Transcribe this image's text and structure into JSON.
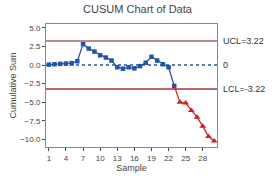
{
  "chart_data": {
    "type": "line",
    "title": "CUSUM Chart of Data",
    "xlabel": "Sample",
    "ylabel": "Cumulative Sum",
    "x": [
      1,
      2,
      3,
      4,
      5,
      6,
      7,
      8,
      9,
      10,
      11,
      12,
      13,
      14,
      15,
      16,
      17,
      18,
      19,
      20,
      21,
      22,
      23,
      24,
      25,
      26,
      27,
      28,
      29,
      30
    ],
    "series": [
      {
        "color": "#2255aa",
        "marker": "square",
        "line_style": "solid",
        "values": [
          0.05,
          0.1,
          0.15,
          0.2,
          0.25,
          0.5,
          2.8,
          2.2,
          1.8,
          1.3,
          1.0,
          0.6,
          -0.3,
          -0.5,
          -0.3,
          -0.45,
          -0.15,
          0.3,
          1.1,
          0.6,
          0.1,
          -0.3,
          -2.8,
          null,
          null,
          null,
          null,
          null,
          null,
          null
        ]
      },
      {
        "color": "#cc2222",
        "marker": "triangle",
        "line_style": "solid",
        "values": [
          null,
          null,
          null,
          null,
          null,
          null,
          null,
          null,
          null,
          null,
          null,
          null,
          null,
          null,
          null,
          null,
          null,
          null,
          null,
          null,
          null,
          null,
          null,
          -5.0,
          -5.1,
          -6.1,
          -7.0,
          -8.2,
          -9.6,
          -10.2
        ]
      }
    ],
    "lines": [
      {
        "value": 3.22,
        "label": "UCL=3.22",
        "color": "#b06060",
        "line_style": "solid"
      },
      {
        "value": 0,
        "label": "0",
        "color": "#2255aa",
        "line_style": "dotted"
      },
      {
        "value": -3.22,
        "label": "LCL=-3.22",
        "color": "#aa3333",
        "line_style": "solid"
      }
    ],
    "xlim": [
      0.5,
      30.5
    ],
    "ylim": [
      -11.0,
      5.5
    ],
    "xticks": [
      1,
      4,
      7,
      10,
      13,
      16,
      19,
      22,
      25,
      28
    ],
    "yticks": [
      {
        "value": 5.0,
        "label": "5.0"
      },
      2.5,
      {
        "value": 0.0,
        "label": "0.0"
      },
      -2.5,
      {
        "value": -5.0,
        "label": "−5.0"
      },
      -7.5,
      {
        "value": -10.0,
        "label": "−10.0"
      }
    ],
    "grid": false
  }
}
